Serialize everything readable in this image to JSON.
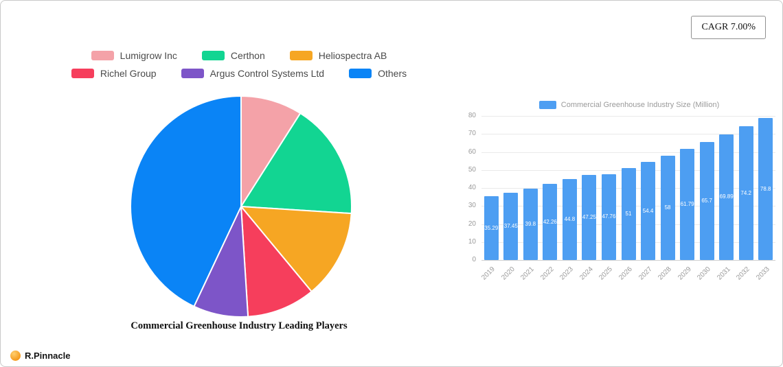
{
  "card": {
    "cagr_label": "CAGR 7.00%"
  },
  "footer": {
    "brand": "R.Pinnacle"
  },
  "chart_data": [
    {
      "type": "pie",
      "title": "Commercial Greenhouse Industry Leading Players",
      "labels": [
        "Lumigrow Inc",
        "Certhon",
        "Heliospectra AB",
        "Richel Group",
        "Argus Control Systems Ltd",
        "Others"
      ],
      "values": [
        9,
        17,
        13,
        10,
        8,
        43
      ],
      "colors": [
        "#f4a2a8",
        "#12d592",
        "#f6a623",
        "#f63e5c",
        "#7d55c8",
        "#0a84f6"
      ],
      "legend_position": "top",
      "start_angle_deg": -90
    },
    {
      "type": "bar",
      "legend": "Commercial Greenhouse Industry Size (Million)",
      "categories": [
        "2019",
        "2020",
        "2021",
        "2022",
        "2023",
        "2024",
        "2025",
        "2026",
        "2027",
        "2028",
        "2029",
        "2030",
        "2031",
        "2032",
        "2033"
      ],
      "values": [
        35.29,
        37.45,
        39.8,
        42.26,
        44.8,
        47.25,
        47.76,
        51,
        54.4,
        58,
        61.79,
        65.7,
        69.89,
        74.2,
        78.8
      ],
      "bar_color": "#4d9ef2",
      "xlabel": "",
      "ylabel": "",
      "ylim": [
        0,
        80
      ],
      "yticks": [
        0,
        10,
        20,
        30,
        40,
        50,
        60,
        70,
        80
      ],
      "grid": true,
      "legend_position": "top",
      "value_labels": "inside-white"
    }
  ]
}
